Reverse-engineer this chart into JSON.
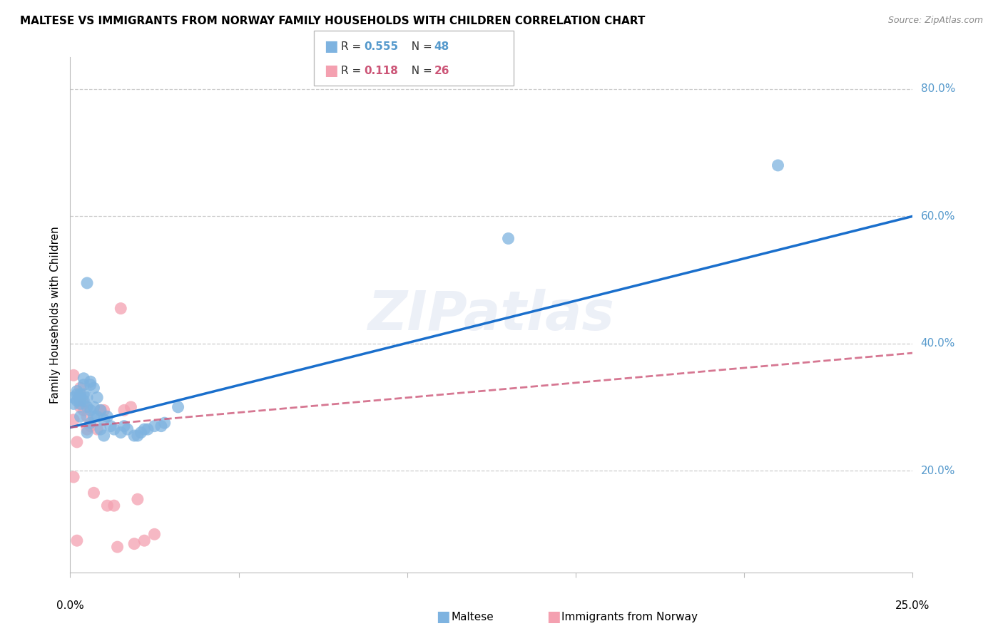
{
  "title": "MALTESE VS IMMIGRANTS FROM NORWAY FAMILY HOUSEHOLDS WITH CHILDREN CORRELATION CHART",
  "source": "Source: ZipAtlas.com",
  "ylabel": "Family Households with Children",
  "ytick_labels": [
    "80.0%",
    "60.0%",
    "40.0%",
    "20.0%"
  ],
  "ytick_values": [
    0.8,
    0.6,
    0.4,
    0.2
  ],
  "xlim": [
    0.0,
    0.25
  ],
  "ylim": [
    0.04,
    0.85
  ],
  "blue_color": "#7EB3E0",
  "pink_color": "#F4A0B0",
  "line_blue": "#1A6FCC",
  "line_pink": "#CC5577",
  "watermark": "ZIPatlas",
  "blue_x": [
    0.001,
    0.001,
    0.002,
    0.002,
    0.002,
    0.003,
    0.003,
    0.003,
    0.003,
    0.003,
    0.004,
    0.004,
    0.004,
    0.005,
    0.005,
    0.005,
    0.005,
    0.006,
    0.006,
    0.006,
    0.007,
    0.007,
    0.007,
    0.008,
    0.008,
    0.009,
    0.009,
    0.01,
    0.01,
    0.011,
    0.012,
    0.013,
    0.015,
    0.016,
    0.017,
    0.019,
    0.02,
    0.021,
    0.022,
    0.023,
    0.025,
    0.027,
    0.028,
    0.032,
    0.004,
    0.006,
    0.13,
    0.21
  ],
  "blue_y": [
    0.305,
    0.315,
    0.31,
    0.32,
    0.325,
    0.285,
    0.305,
    0.31,
    0.315,
    0.32,
    0.31,
    0.32,
    0.345,
    0.26,
    0.3,
    0.315,
    0.495,
    0.275,
    0.295,
    0.335,
    0.285,
    0.3,
    0.33,
    0.285,
    0.315,
    0.265,
    0.295,
    0.255,
    0.28,
    0.285,
    0.27,
    0.265,
    0.26,
    0.27,
    0.265,
    0.255,
    0.255,
    0.26,
    0.265,
    0.265,
    0.27,
    0.27,
    0.275,
    0.3,
    0.335,
    0.34,
    0.565,
    0.68
  ],
  "pink_x": [
    0.001,
    0.001,
    0.002,
    0.002,
    0.003,
    0.003,
    0.004,
    0.004,
    0.005,
    0.005,
    0.006,
    0.007,
    0.008,
    0.009,
    0.01,
    0.011,
    0.013,
    0.014,
    0.015,
    0.016,
    0.018,
    0.019,
    0.02,
    0.022,
    0.025,
    0.001
  ],
  "pink_y": [
    0.35,
    0.28,
    0.09,
    0.245,
    0.3,
    0.33,
    0.295,
    0.305,
    0.265,
    0.285,
    0.27,
    0.165,
    0.265,
    0.295,
    0.295,
    0.145,
    0.145,
    0.08,
    0.455,
    0.295,
    0.3,
    0.085,
    0.155,
    0.09,
    0.1,
    0.19
  ],
  "blue_line_x0": 0.0,
  "blue_line_x1": 0.25,
  "blue_line_y0": 0.268,
  "blue_line_y1": 0.6,
  "pink_line_x0": 0.0,
  "pink_line_x1": 0.25,
  "pink_line_y0": 0.268,
  "pink_line_y1": 0.385
}
